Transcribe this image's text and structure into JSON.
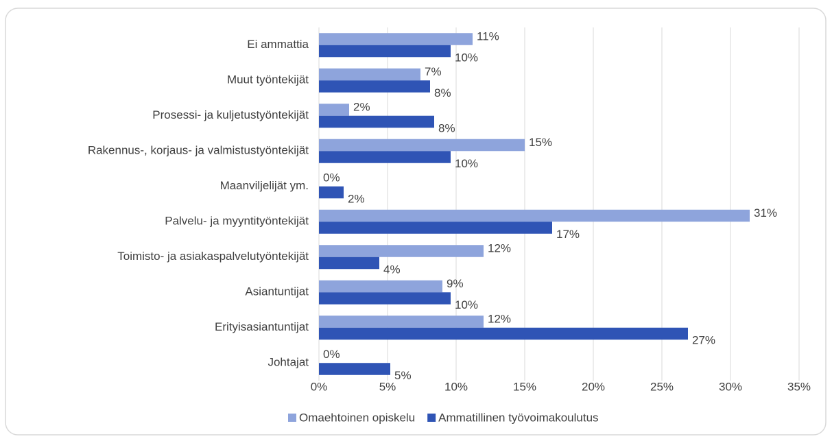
{
  "chart_data": {
    "type": "hbar",
    "categories": [
      "Ei ammattia",
      "Muut työntekijät",
      "Prosessi- ja kuljetustyöntekijät",
      "Rakennus-, korjaus- ja valmistustyöntekijät",
      "Maanviljelijät ym.",
      "Palvelu- ja myyntityöntekijät",
      "Toimisto- ja asiakaspalvelutyöntekijät",
      "Asiantuntijat",
      "Erityisasiantuntijat",
      "Johtajat"
    ],
    "series": [
      {
        "name": "Omaehtoinen opiskelu",
        "color": "#8ea4dc",
        "values": [
          11.2,
          7.4,
          2.2,
          15,
          0,
          31.4,
          12,
          9,
          12,
          0
        ],
        "value_labels": [
          "11%",
          "7%",
          "2%",
          "15%",
          "0%",
          "31%",
          "12%",
          "9%",
          "12%",
          "0%"
        ]
      },
      {
        "name": "Ammatillinen työvoimakoulutus",
        "color": "#2f54b5",
        "values": [
          9.6,
          8.1,
          8.4,
          9.6,
          1.8,
          17,
          4.4,
          9.6,
          26.9,
          5.2
        ],
        "value_labels": [
          "10%",
          "8%",
          "8%",
          "10%",
          "2%",
          "17%",
          "4%",
          "10%",
          "27%",
          "5%"
        ]
      }
    ],
    "xlim": [
      0,
      35
    ],
    "xticks": [
      {
        "value": 0,
        "label": "0%"
      },
      {
        "value": 5,
        "label": "5%"
      },
      {
        "value": 10,
        "label": "10%"
      },
      {
        "value": 15,
        "label": "15%"
      },
      {
        "value": 20,
        "label": "20%"
      },
      {
        "value": 25,
        "label": "25%"
      },
      {
        "value": 30,
        "label": "30%"
      },
      {
        "value": 35,
        "label": "35%"
      }
    ],
    "grid": true,
    "legend": "bottom"
  }
}
